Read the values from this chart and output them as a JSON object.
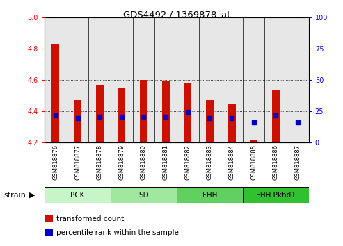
{
  "title": "GDS4492 / 1369878_at",
  "samples": [
    "GSM818876",
    "GSM818877",
    "GSM818878",
    "GSM818879",
    "GSM818880",
    "GSM818881",
    "GSM818882",
    "GSM818883",
    "GSM818884",
    "GSM818885",
    "GSM818886",
    "GSM818887"
  ],
  "bar_values": [
    4.83,
    4.47,
    4.57,
    4.55,
    4.6,
    4.59,
    4.58,
    4.47,
    4.45,
    4.22,
    4.54,
    4.2
  ],
  "bar_base": 4.2,
  "blue_dot_values": [
    4.375,
    4.355,
    4.365,
    4.365,
    4.365,
    4.365,
    4.395,
    4.355,
    4.355,
    4.33,
    4.375,
    4.33
  ],
  "groups": [
    {
      "label": "PCK",
      "start": 0,
      "end": 2,
      "color": "#c8f5c8"
    },
    {
      "label": "SD",
      "start": 3,
      "end": 5,
      "color": "#a0e8a0"
    },
    {
      "label": "FHH",
      "start": 6,
      "end": 8,
      "color": "#60d060"
    },
    {
      "label": "FHH.Pkhd1",
      "start": 9,
      "end": 11,
      "color": "#30c030"
    }
  ],
  "ylim_left": [
    4.2,
    5.0
  ],
  "ylim_right": [
    0,
    100
  ],
  "yticks_left": [
    4.2,
    4.4,
    4.6,
    4.8,
    5.0
  ],
  "yticks_right": [
    0,
    25,
    50,
    75,
    100
  ],
  "bar_color": "#cc1100",
  "dot_color": "#0000cc",
  "legend_items": [
    "transformed count",
    "percentile rank within the sample"
  ]
}
